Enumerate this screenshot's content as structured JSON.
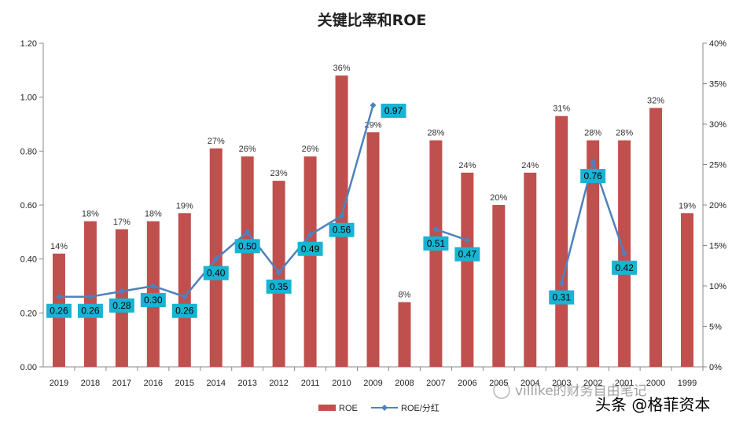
{
  "chart_data": {
    "type": "bar",
    "title": "关键比率和ROE",
    "categories": [
      "2019",
      "2018",
      "2017",
      "2016",
      "2015",
      "2014",
      "2013",
      "2012",
      "2011",
      "2010",
      "2009",
      "2008",
      "2007",
      "2006",
      "2005",
      "2004",
      "2003",
      "2002",
      "2001",
      "2000",
      "1999"
    ],
    "series": [
      {
        "name": "ROE",
        "type": "bar",
        "axis": "right",
        "color": "#c0504d",
        "values": [
          14,
          18,
          17,
          18,
          19,
          27,
          26,
          23,
          26,
          36,
          29,
          8,
          28,
          24,
          20,
          24,
          31,
          28,
          28,
          32,
          19
        ],
        "labels": [
          "14%",
          "18%",
          "17%",
          "18%",
          "19%",
          "27%",
          "26%",
          "23%",
          "26%",
          "36%",
          "29%",
          "8%",
          "28%",
          "24%",
          "20%",
          "24%",
          "31%",
          "28%",
          "28%",
          "32%",
          "19%"
        ]
      },
      {
        "name": "ROE/分红",
        "type": "line",
        "axis": "left",
        "color": "#4f81bd",
        "values": [
          0.26,
          0.26,
          0.28,
          0.3,
          0.26,
          0.4,
          0.5,
          0.35,
          0.49,
          0.56,
          0.97,
          null,
          0.51,
          0.47,
          null,
          null,
          0.31,
          0.76,
          0.42,
          null,
          null
        ],
        "labels": [
          "0.26",
          "0.26",
          "0.28",
          "0.30",
          "0.26",
          "0.40",
          "0.50",
          "0.35",
          "0.49",
          "0.56",
          "0.97",
          null,
          "0.51",
          "0.47",
          null,
          null,
          "0.31",
          "0.76",
          "0.42",
          null,
          null
        ]
      }
    ],
    "y_left": {
      "min": 0,
      "max": 1.2,
      "ticks": [
        "0.00",
        "0.20",
        "0.40",
        "0.60",
        "0.80",
        "1.00",
        "1.20"
      ]
    },
    "y_right": {
      "min": 0,
      "max": 40,
      "ticks": [
        "0%",
        "5%",
        "10%",
        "15%",
        "20%",
        "25%",
        "30%",
        "35%",
        "40%"
      ]
    },
    "grid": false,
    "legend_position": "bottom"
  },
  "label_box_color": "#17b4d4",
  "watermark": {
    "line1": "villike的财务自由笔记",
    "line2": "头条 @格菲资本"
  }
}
